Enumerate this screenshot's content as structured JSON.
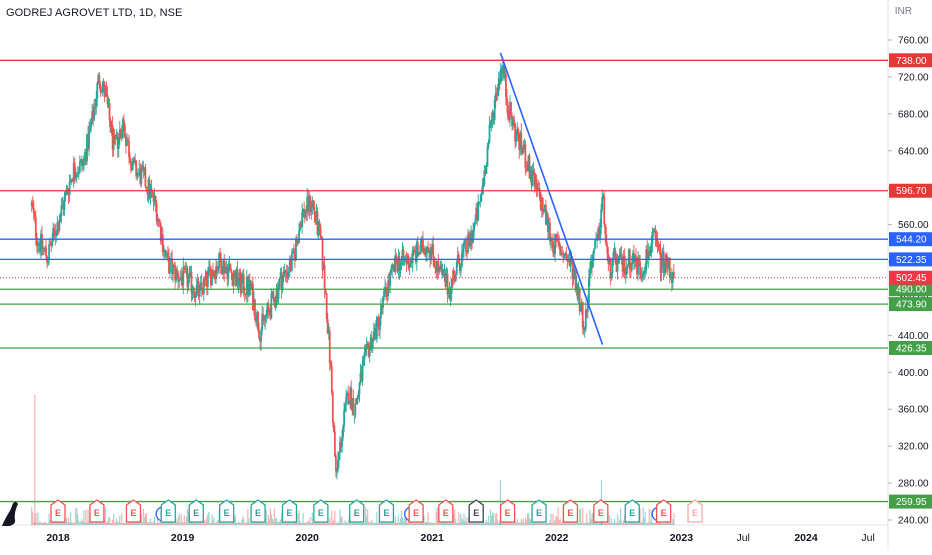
{
  "header": {
    "title": "GODREJ AGROVET LTD, 1D, NSE",
    "currency": "INR"
  },
  "colors": {
    "up": "#26a69a",
    "down": "#ef5350",
    "resistance": "#e53935",
    "mid": "#2962ff",
    "support": "#43a047",
    "trendline": "#2962ff",
    "last_price": "#f23645",
    "axis_text": "#131722",
    "grid": "#f0f3fa"
  },
  "chart_data": {
    "type": "candlestick",
    "title": "GODREJ AGROVET LTD, 1D, NSE",
    "y_unit": "INR",
    "ylim": [
      220,
      790
    ],
    "y_ticks": [
      240,
      280,
      320,
      360,
      400,
      440,
      480,
      520,
      560,
      600,
      640,
      680,
      720,
      760
    ],
    "y_tick_labels": [
      "240.00",
      "280.00",
      "320.00",
      "360.00",
      "400.00",
      "440.00",
      "480.00",
      "520.00",
      "560.00",
      "600.00",
      "640.00",
      "680.00",
      "720.00",
      "760.00"
    ],
    "x_range": [
      "2017-10-15",
      "2024-10-01"
    ],
    "x_ticks": [
      {
        "date": "2018-01-01",
        "label": "2018"
      },
      {
        "date": "2019-01-01",
        "label": "2019"
      },
      {
        "date": "2020-01-01",
        "label": "2020"
      },
      {
        "date": "2021-01-01",
        "label": "2021"
      },
      {
        "date": "2022-01-01",
        "label": "2022"
      },
      {
        "date": "2023-01-01",
        "label": "2023"
      },
      {
        "date": "2023-07-01",
        "label": "Jul"
      },
      {
        "date": "2024-01-01",
        "label": "2024"
      },
      {
        "date": "2024-07-01",
        "label": "Jul"
      }
    ],
    "price_path": [
      [
        "2017-10-16",
        580
      ],
      [
        "2017-11-01",
        545
      ],
      [
        "2017-12-01",
        525
      ],
      [
        "2018-01-15",
        580
      ],
      [
        "2018-02-15",
        620
      ],
      [
        "2018-03-15",
        625
      ],
      [
        "2018-04-10",
        670
      ],
      [
        "2018-05-01",
        720
      ],
      [
        "2018-05-20",
        700
      ],
      [
        "2018-06-15",
        640
      ],
      [
        "2018-07-10",
        670
      ],
      [
        "2018-08-10",
        620
      ],
      [
        "2018-09-10",
        610
      ],
      [
        "2018-10-15",
        580
      ],
      [
        "2018-11-15",
        520
      ],
      [
        "2018-12-15",
        505
      ],
      [
        "2019-01-15",
        500
      ],
      [
        "2019-02-20",
        485
      ],
      [
        "2019-03-20",
        505
      ],
      [
        "2019-04-20",
        520
      ],
      [
        "2019-05-20",
        510
      ],
      [
        "2019-06-20",
        495
      ],
      [
        "2019-07-20",
        490
      ],
      [
        "2019-08-15",
        445
      ],
      [
        "2019-09-15",
        470
      ],
      [
        "2019-10-15",
        500
      ],
      [
        "2019-11-20",
        520
      ],
      [
        "2019-12-15",
        570
      ],
      [
        "2020-01-15",
        585
      ],
      [
        "2020-02-10",
        540
      ],
      [
        "2020-02-25",
        480
      ],
      [
        "2020-03-10",
        400
      ],
      [
        "2020-03-25",
        285
      ],
      [
        "2020-04-10",
        330
      ],
      [
        "2020-05-01",
        380
      ],
      [
        "2020-05-20",
        360
      ],
      [
        "2020-06-10",
        400
      ],
      [
        "2020-07-01",
        430
      ],
      [
        "2020-07-25",
        450
      ],
      [
        "2020-08-20",
        490
      ],
      [
        "2020-09-20",
        520
      ],
      [
        "2020-10-20",
        520
      ],
      [
        "2020-11-20",
        530
      ],
      [
        "2020-12-20",
        540
      ],
      [
        "2021-01-20",
        510
      ],
      [
        "2021-02-20",
        490
      ],
      [
        "2021-03-20",
        520
      ],
      [
        "2021-04-20",
        540
      ],
      [
        "2021-05-20",
        580
      ],
      [
        "2021-06-15",
        650
      ],
      [
        "2021-07-10",
        710
      ],
      [
        "2021-07-25",
        735
      ],
      [
        "2021-08-10",
        690
      ],
      [
        "2021-09-01",
        660
      ],
      [
        "2021-09-25",
        640
      ],
      [
        "2021-10-20",
        610
      ],
      [
        "2021-11-20",
        580
      ],
      [
        "2021-12-20",
        540
      ],
      [
        "2022-01-20",
        530
      ],
      [
        "2022-02-20",
        510
      ],
      [
        "2022-03-10",
        475
      ],
      [
        "2022-03-25",
        450
      ],
      [
        "2022-04-10",
        520
      ],
      [
        "2022-05-01",
        540
      ],
      [
        "2022-05-15",
        590
      ],
      [
        "2022-06-01",
        510
      ],
      [
        "2022-06-20",
        520
      ],
      [
        "2022-07-15",
        515
      ],
      [
        "2022-08-10",
        525
      ],
      [
        "2022-09-05",
        510
      ],
      [
        "2022-09-25",
        530
      ],
      [
        "2022-10-15",
        545
      ],
      [
        "2022-11-01",
        520
      ],
      [
        "2022-11-25",
        515
      ],
      [
        "2022-12-10",
        502.45
      ]
    ],
    "horizontal_levels": [
      {
        "value": 738.0,
        "label": "738.00",
        "kind": "resistance"
      },
      {
        "value": 596.7,
        "label": "596.70",
        "kind": "resistance"
      },
      {
        "value": 544.2,
        "label": "544.20",
        "kind": "mid"
      },
      {
        "value": 522.35,
        "label": "522.35",
        "kind": "mid"
      },
      {
        "value": 490.0,
        "label": "490.00",
        "kind": "support"
      },
      {
        "value": 473.9,
        "label": "473.90",
        "kind": "support"
      },
      {
        "value": 426.35,
        "label": "426.35",
        "kind": "support"
      },
      {
        "value": 259.95,
        "label": "259.95",
        "kind": "support"
      }
    ],
    "last_price": {
      "value": 502.45,
      "label": "502.45"
    },
    "trendline": {
      "from": [
        "2021-07-20",
        746
      ],
      "to": [
        "2022-05-15",
        430
      ]
    },
    "event_markers": [
      {
        "date": "2018-01-01",
        "symbol": "E",
        "kind": "earnings-miss"
      },
      {
        "date": "2018-04-25",
        "symbol": "E",
        "kind": "earnings-miss"
      },
      {
        "date": "2018-08-10",
        "symbol": "E",
        "kind": "earnings-miss"
      },
      {
        "date": "2018-11-05",
        "symbol": "D",
        "kind": "dividend"
      },
      {
        "date": "2018-11-20",
        "symbol": "E",
        "kind": "earnings-beat"
      },
      {
        "date": "2019-02-10",
        "symbol": "E",
        "kind": "earnings-beat"
      },
      {
        "date": "2019-05-10",
        "symbol": "E",
        "kind": "earnings-beat"
      },
      {
        "date": "2019-08-10",
        "symbol": "E",
        "kind": "earnings-beat"
      },
      {
        "date": "2019-11-10",
        "symbol": "E",
        "kind": "earnings-beat"
      },
      {
        "date": "2020-02-10",
        "symbol": "E",
        "kind": "earnings-beat"
      },
      {
        "date": "2020-05-25",
        "symbol": "E",
        "kind": "earnings-beat"
      },
      {
        "date": "2020-08-20",
        "symbol": "E",
        "kind": "earnings-beat"
      },
      {
        "date": "2020-11-02",
        "symbol": "D",
        "kind": "dividend"
      },
      {
        "date": "2020-11-15",
        "symbol": "E",
        "kind": "earnings-miss"
      },
      {
        "date": "2021-02-10",
        "symbol": "E",
        "kind": "earnings-miss"
      },
      {
        "date": "2021-05-10",
        "symbol": "E",
        "kind": "earnings-neutral"
      },
      {
        "date": "2021-08-10",
        "symbol": "E",
        "kind": "earnings-miss"
      },
      {
        "date": "2021-11-10",
        "symbol": "E",
        "kind": "earnings-beat"
      },
      {
        "date": "2022-02-10",
        "symbol": "E",
        "kind": "earnings-miss"
      },
      {
        "date": "2022-05-10",
        "symbol": "E",
        "kind": "earnings-miss"
      },
      {
        "date": "2022-08-10",
        "symbol": "E",
        "kind": "earnings-beat"
      },
      {
        "date": "2022-10-28",
        "symbol": "D",
        "kind": "dividend"
      },
      {
        "date": "2022-11-10",
        "symbol": "E",
        "kind": "earnings-miss"
      },
      {
        "date": "2023-02-10",
        "symbol": "E",
        "kind": "earnings-upcoming"
      }
    ]
  }
}
